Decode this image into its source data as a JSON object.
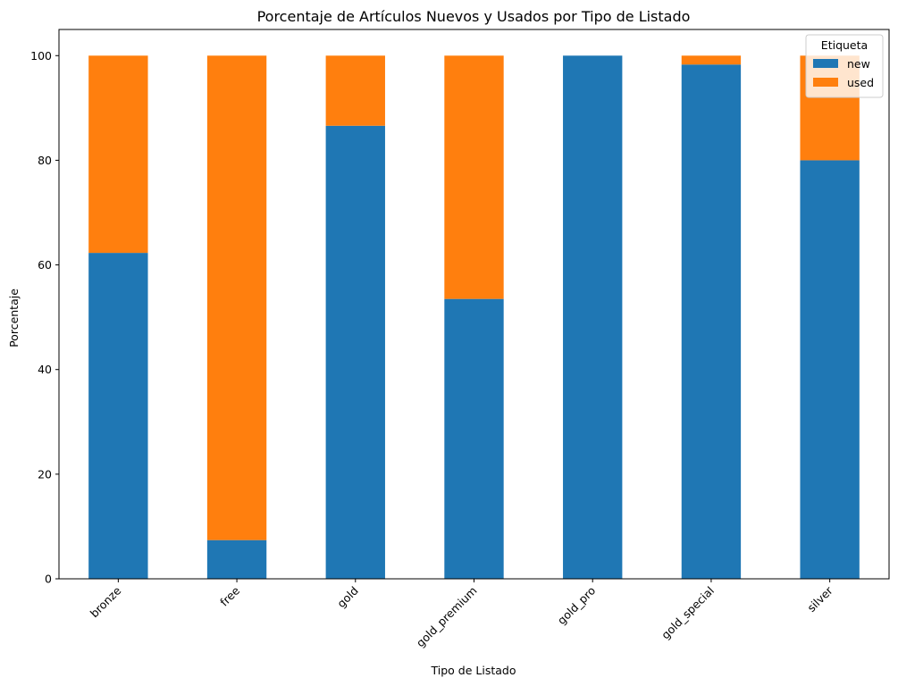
{
  "chart_data": {
    "type": "bar",
    "stacked": true,
    "title": "Porcentaje de Artículos Nuevos y Usados por Tipo de Listado",
    "xlabel": "Tipo de Listado",
    "ylabel": "Porcentaje",
    "ylim": [
      0,
      105
    ],
    "yticks": [
      0,
      20,
      40,
      60,
      80,
      100
    ],
    "categories": [
      "bronze",
      "free",
      "gold",
      "gold_premium",
      "gold_pro",
      "gold_special",
      "silver"
    ],
    "series": [
      {
        "name": "new",
        "color": "#1f77b4",
        "values": [
          62.3,
          7.4,
          86.6,
          53.5,
          100,
          98.3,
          80.0
        ]
      },
      {
        "name": "used",
        "color": "#ff7f0e",
        "values": [
          37.7,
          92.6,
          13.4,
          46.5,
          0,
          1.7,
          20.0
        ]
      }
    ],
    "grid": false,
    "legend": {
      "title": "Etiqueta",
      "position": "top-right"
    }
  }
}
